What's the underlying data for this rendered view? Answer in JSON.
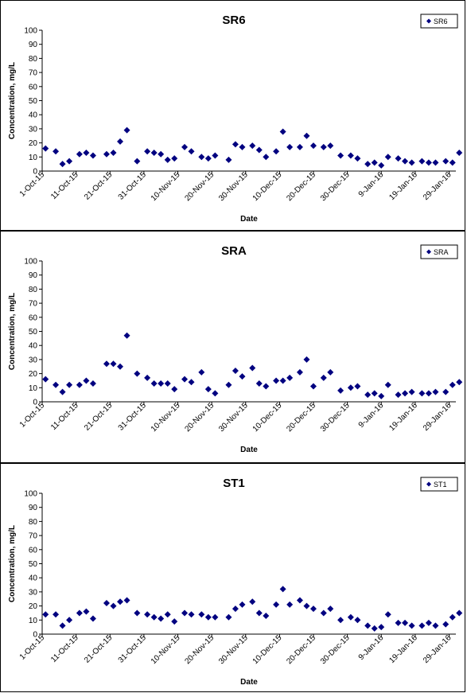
{
  "chart_data": [
    {
      "type": "scatter",
      "title": "SR6",
      "xlabel": "Date",
      "ylabel": "Concentration, mg/L",
      "ylim": [
        0,
        100
      ],
      "yticks": [
        0,
        10,
        20,
        30,
        40,
        50,
        60,
        70,
        80,
        90,
        100
      ],
      "xlim": [
        "2015-10-01",
        "2016-01-31"
      ],
      "xtick_labels": [
        "1-Oct-15",
        "11-Oct-15",
        "21-Oct-15",
        "31-Oct-15",
        "10-Nov-15",
        "20-Nov-15",
        "30-Nov-15",
        "10-Dec-15",
        "20-Dec-15",
        "30-Dec-15",
        "9-Jan-16",
        "19-Jan-16",
        "29-Jan-16"
      ],
      "legend": "top-right",
      "grid": false,
      "color": "#000080",
      "series": [
        {
          "name": "SR6",
          "points": [
            [
              "2015-10-02",
              16
            ],
            [
              "2015-10-05",
              14
            ],
            [
              "2015-10-07",
              5
            ],
            [
              "2015-10-09",
              7
            ],
            [
              "2015-10-12",
              12
            ],
            [
              "2015-10-14",
              13
            ],
            [
              "2015-10-16",
              11
            ],
            [
              "2015-10-20",
              12
            ],
            [
              "2015-10-22",
              13
            ],
            [
              "2015-10-24",
              21
            ],
            [
              "2015-10-26",
              29
            ],
            [
              "2015-10-29",
              7
            ],
            [
              "2015-11-01",
              14
            ],
            [
              "2015-11-03",
              13
            ],
            [
              "2015-11-05",
              12
            ],
            [
              "2015-11-07",
              8
            ],
            [
              "2015-11-09",
              9
            ],
            [
              "2015-11-12",
              17
            ],
            [
              "2015-11-14",
              14
            ],
            [
              "2015-11-17",
              10
            ],
            [
              "2015-11-19",
              9
            ],
            [
              "2015-11-21",
              11
            ],
            [
              "2015-11-25",
              8
            ],
            [
              "2015-11-27",
              19
            ],
            [
              "2015-11-29",
              17
            ],
            [
              "2015-12-02",
              18
            ],
            [
              "2015-12-04",
              15
            ],
            [
              "2015-12-06",
              10
            ],
            [
              "2015-12-09",
              14
            ],
            [
              "2015-12-11",
              28
            ],
            [
              "2015-12-13",
              17
            ],
            [
              "2015-12-16",
              17
            ],
            [
              "2015-12-18",
              25
            ],
            [
              "2015-12-20",
              18
            ],
            [
              "2015-12-23",
              17
            ],
            [
              "2015-12-25",
              18
            ],
            [
              "2015-12-28",
              11
            ],
            [
              "2015-12-31",
              11
            ],
            [
              "2016-01-02",
              9
            ],
            [
              "2016-01-05",
              5
            ],
            [
              "2016-01-07",
              6
            ],
            [
              "2016-01-09",
              4
            ],
            [
              "2016-01-11",
              10
            ],
            [
              "2016-01-14",
              9
            ],
            [
              "2016-01-16",
              7
            ],
            [
              "2016-01-18",
              6
            ],
            [
              "2016-01-21",
              7
            ],
            [
              "2016-01-23",
              6
            ],
            [
              "2016-01-25",
              6
            ],
            [
              "2016-01-28",
              7
            ],
            [
              "2016-01-30",
              6
            ],
            [
              "2016-02-01",
              13
            ]
          ]
        }
      ]
    },
    {
      "type": "scatter",
      "title": "SRA",
      "xlabel": "Date",
      "ylabel": "Concentration, mg/L",
      "ylim": [
        0,
        100
      ],
      "yticks": [
        0,
        10,
        20,
        30,
        40,
        50,
        60,
        70,
        80,
        90,
        100
      ],
      "xlim": [
        "2015-10-01",
        "2016-01-31"
      ],
      "xtick_labels": [
        "1-Oct-15",
        "11-Oct-15",
        "21-Oct-15",
        "31-Oct-15",
        "10-Nov-15",
        "20-Nov-15",
        "30-Nov-15",
        "10-Dec-15",
        "20-Dec-15",
        "30-Dec-15",
        "9-Jan-16",
        "19-Jan-16",
        "29-Jan-16"
      ],
      "legend": "top-right",
      "grid": false,
      "color": "#000080",
      "series": [
        {
          "name": "SRA",
          "points": [
            [
              "2015-10-02",
              16
            ],
            [
              "2015-10-05",
              12
            ],
            [
              "2015-10-07",
              7
            ],
            [
              "2015-10-09",
              12
            ],
            [
              "2015-10-12",
              12
            ],
            [
              "2015-10-14",
              15
            ],
            [
              "2015-10-16",
              13
            ],
            [
              "2015-10-20",
              27
            ],
            [
              "2015-10-22",
              27
            ],
            [
              "2015-10-24",
              25
            ],
            [
              "2015-10-26",
              47
            ],
            [
              "2015-10-29",
              20
            ],
            [
              "2015-11-01",
              17
            ],
            [
              "2015-11-03",
              13
            ],
            [
              "2015-11-05",
              13
            ],
            [
              "2015-11-07",
              13
            ],
            [
              "2015-11-09",
              9
            ],
            [
              "2015-11-12",
              16
            ],
            [
              "2015-11-14",
              14
            ],
            [
              "2015-11-17",
              21
            ],
            [
              "2015-11-19",
              9
            ],
            [
              "2015-11-21",
              6
            ],
            [
              "2015-11-25",
              12
            ],
            [
              "2015-11-27",
              22
            ],
            [
              "2015-11-29",
              18
            ],
            [
              "2015-12-02",
              24
            ],
            [
              "2015-12-04",
              13
            ],
            [
              "2015-12-06",
              11
            ],
            [
              "2015-12-09",
              15
            ],
            [
              "2015-12-11",
              15
            ],
            [
              "2015-12-13",
              17
            ],
            [
              "2015-12-16",
              21
            ],
            [
              "2015-12-18",
              30
            ],
            [
              "2015-12-20",
              11
            ],
            [
              "2015-12-23",
              17
            ],
            [
              "2015-12-25",
              21
            ],
            [
              "2015-12-28",
              8
            ],
            [
              "2015-12-31",
              10
            ],
            [
              "2016-01-02",
              11
            ],
            [
              "2016-01-05",
              5
            ],
            [
              "2016-01-07",
              6
            ],
            [
              "2016-01-09",
              4
            ],
            [
              "2016-01-11",
              12
            ],
            [
              "2016-01-14",
              5
            ],
            [
              "2016-01-16",
              6
            ],
            [
              "2016-01-18",
              7
            ],
            [
              "2016-01-21",
              6
            ],
            [
              "2016-01-23",
              6
            ],
            [
              "2016-01-25",
              7
            ],
            [
              "2016-01-28",
              7
            ],
            [
              "2016-01-30",
              12
            ],
            [
              "2016-02-01",
              14
            ]
          ]
        }
      ]
    },
    {
      "type": "scatter",
      "title": "ST1",
      "xlabel": "Date",
      "ylabel": "Concentration, mg/L",
      "ylim": [
        0,
        100
      ],
      "yticks": [
        0,
        10,
        20,
        30,
        40,
        50,
        60,
        70,
        80,
        90,
        100
      ],
      "xlim": [
        "2015-10-01",
        "2016-01-31"
      ],
      "xtick_labels": [
        "1-Oct-15",
        "11-Oct-15",
        "21-Oct-15",
        "31-Oct-15",
        "10-Nov-15",
        "20-Nov-15",
        "30-Nov-15",
        "10-Dec-15",
        "20-Dec-15",
        "30-Dec-15",
        "9-Jan-16",
        "19-Jan-16",
        "29-Jan-16"
      ],
      "legend": "top-right",
      "grid": false,
      "color": "#000080",
      "series": [
        {
          "name": "ST1",
          "points": [
            [
              "2015-10-02",
              14
            ],
            [
              "2015-10-05",
              14
            ],
            [
              "2015-10-07",
              6
            ],
            [
              "2015-10-09",
              10
            ],
            [
              "2015-10-12",
              15
            ],
            [
              "2015-10-14",
              16
            ],
            [
              "2015-10-16",
              11
            ],
            [
              "2015-10-20",
              22
            ],
            [
              "2015-10-22",
              20
            ],
            [
              "2015-10-24",
              23
            ],
            [
              "2015-10-26",
              24
            ],
            [
              "2015-10-29",
              15
            ],
            [
              "2015-11-01",
              14
            ],
            [
              "2015-11-03",
              12
            ],
            [
              "2015-11-05",
              11
            ],
            [
              "2015-11-07",
              14
            ],
            [
              "2015-11-09",
              9
            ],
            [
              "2015-11-12",
              15
            ],
            [
              "2015-11-14",
              14
            ],
            [
              "2015-11-17",
              14
            ],
            [
              "2015-11-19",
              12
            ],
            [
              "2015-11-21",
              12
            ],
            [
              "2015-11-25",
              12
            ],
            [
              "2015-11-27",
              18
            ],
            [
              "2015-11-29",
              21
            ],
            [
              "2015-12-02",
              23
            ],
            [
              "2015-12-04",
              15
            ],
            [
              "2015-12-06",
              13
            ],
            [
              "2015-12-09",
              21
            ],
            [
              "2015-12-11",
              32
            ],
            [
              "2015-12-13",
              21
            ],
            [
              "2015-12-16",
              24
            ],
            [
              "2015-12-18",
              20
            ],
            [
              "2015-12-20",
              18
            ],
            [
              "2015-12-23",
              15
            ],
            [
              "2015-12-25",
              18
            ],
            [
              "2015-12-28",
              10
            ],
            [
              "2015-12-31",
              12
            ],
            [
              "2016-01-02",
              10
            ],
            [
              "2016-01-05",
              6
            ],
            [
              "2016-01-07",
              4
            ],
            [
              "2016-01-09",
              5
            ],
            [
              "2016-01-11",
              14
            ],
            [
              "2016-01-14",
              8
            ],
            [
              "2016-01-16",
              8
            ],
            [
              "2016-01-18",
              6
            ],
            [
              "2016-01-21",
              6
            ],
            [
              "2016-01-23",
              8
            ],
            [
              "2016-01-25",
              6
            ],
            [
              "2016-01-28",
              7
            ],
            [
              "2016-01-30",
              12
            ],
            [
              "2016-02-01",
              15
            ]
          ]
        }
      ]
    }
  ]
}
